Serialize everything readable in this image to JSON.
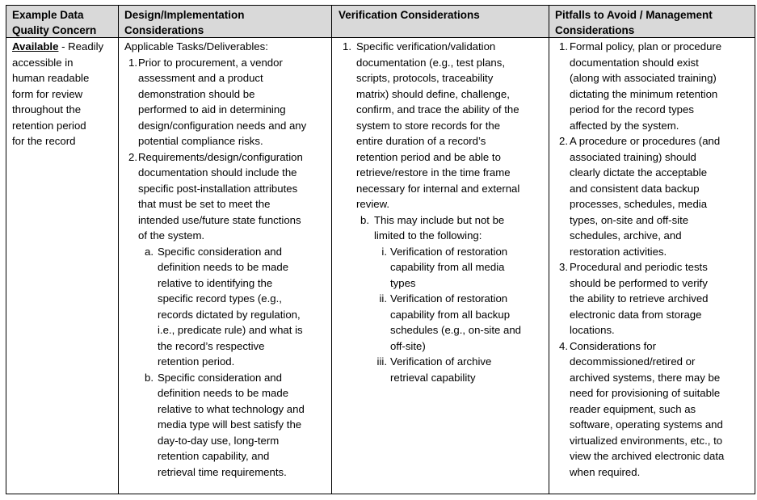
{
  "headers": [
    [
      "Example Data",
      "Quality Concern"
    ],
    [
      "Design/Implementation",
      "Considerations"
    ],
    [
      "Verification Considerations"
    ],
    [
      "Pitfalls to Avoid / Management",
      "Considerations"
    ]
  ],
  "concern": {
    "term": "Available",
    "lines": [
      " - Readily",
      "accessible in",
      "human readable",
      "form for review",
      "throughout the",
      "retention period",
      "for the record"
    ]
  },
  "design": [
    {
      "level": 0,
      "marker": "",
      "lines": [
        "Applicable Tasks/Deliverables:"
      ]
    },
    {
      "level": 1,
      "marker": "1.",
      "lines": [
        "Prior to procurement, a vendor",
        "assessment and a product",
        "demonstration should be",
        "performed to aid in determining",
        "design/configuration needs and any",
        "potential compliance risks."
      ]
    },
    {
      "level": 1,
      "marker": "2.",
      "lines": [
        "Requirements/design/configuration",
        "documentation should include the",
        "specific post-installation attributes",
        "that must be set to meet the",
        "intended use/future state functions",
        "of the system."
      ]
    },
    {
      "level": 2,
      "marker": "a.",
      "lines": [
        "Specific consideration and",
        "definition needs to be made",
        "relative to identifying the",
        "specific record types (e.g.,",
        "records dictated by regulation,",
        "i.e., predicate rule) and what is",
        "the record’s respective",
        "retention period."
      ]
    },
    {
      "level": 2,
      "marker": "b.",
      "lines": [
        "Specific consideration and",
        "definition needs to be made",
        "relative to what technology and",
        "media type will best satisfy the",
        "day-to-day use, long-term",
        "retention capability, and",
        "retrieval time requirements."
      ]
    }
  ],
  "verification": [
    {
      "level": 1,
      "marker": "1.",
      "lines": [
        "Specific verification/validation",
        "documentation (e.g., test plans,",
        "scripts, protocols, traceability",
        "matrix) should define, challenge,",
        "confirm, and trace the ability of the",
        "system to store records for the",
        "entire duration of a record’s",
        "retention period and be able to",
        "retrieve/restore in the time frame",
        "necessary for internal and external",
        "review."
      ]
    },
    {
      "level": 2,
      "marker": "b.",
      "lines": [
        "This may include but not be",
        "limited to the following:"
      ]
    },
    {
      "level": 3,
      "marker": "i.",
      "lines": [
        "Verification of restoration",
        "capability from all media",
        "types"
      ]
    },
    {
      "level": 3,
      "marker": "ii.",
      "lines": [
        "Verification of restoration",
        "capability from all backup",
        "schedules (e.g., on-site and",
        "off-site)"
      ]
    },
    {
      "level": 3,
      "marker": "iii.",
      "lines": [
        "Verification of archive",
        "retrieval capability"
      ]
    }
  ],
  "pitfalls": [
    {
      "level": 1,
      "marker": "1.",
      "lines": [
        "Formal policy, plan or procedure",
        "documentation should exist",
        "(along with associated training)",
        "dictating the minimum retention",
        "period for the record types",
        "affected by the system."
      ]
    },
    {
      "level": 1,
      "marker": "2.",
      "lines": [
        "A procedure or procedures (and",
        "associated training) should",
        "clearly dictate the acceptable",
        "and consistent data backup",
        "processes, schedules, media",
        "types, on-site and off-site",
        "schedules, archive, and",
        "restoration activities."
      ]
    },
    {
      "level": 1,
      "marker": "3.",
      "lines": [
        "Procedural and periodic tests",
        "should be performed to verify",
        "the ability to retrieve archived",
        "electronic data from storage",
        "locations."
      ]
    },
    {
      "level": 1,
      "marker": "4.",
      "lines": [
        "Considerations for",
        "decommissioned/retired or",
        "archived systems, there may be",
        "need for provisioning of suitable",
        "reader equipment, such as",
        "software, operating systems and",
        "virtualized environments, etc., to",
        "view the archived electronic data",
        "when required."
      ]
    }
  ]
}
